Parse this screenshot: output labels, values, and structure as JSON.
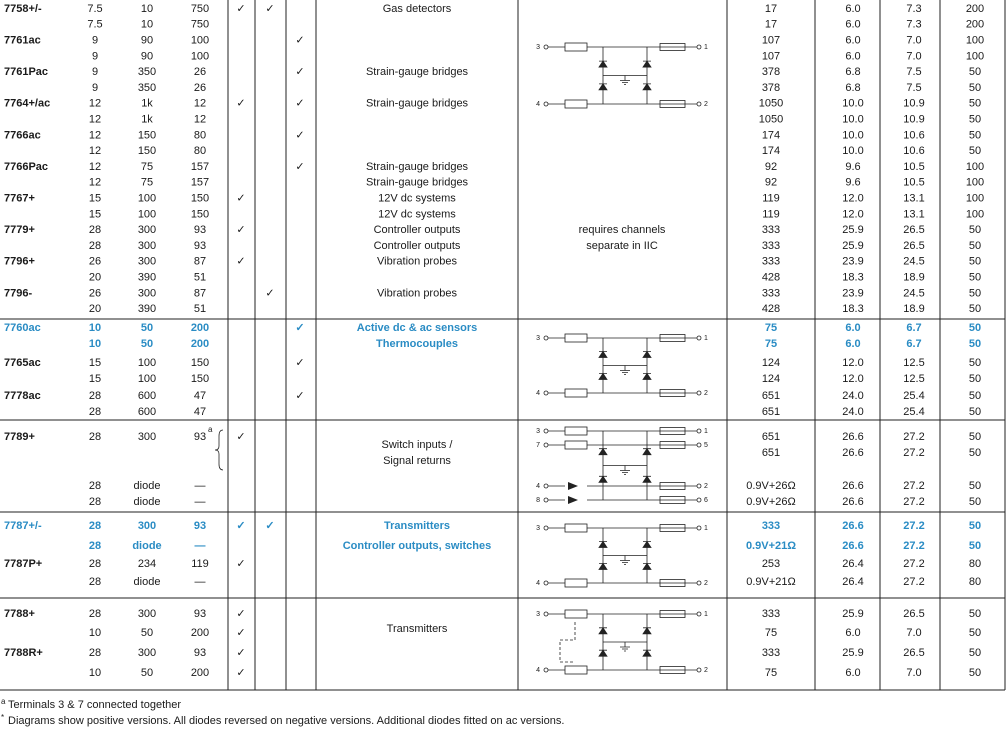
{
  "table": {
    "groups": [
      {
        "rows": [
          [
            "7758+/-",
            "7.5",
            "10",
            "750",
            "✓",
            "✓",
            null,
            "Gas detectors",
            null,
            "17",
            "6.0",
            "7.3",
            "200"
          ],
          [
            null,
            "7.5",
            "10",
            "750",
            null,
            null,
            null,
            null,
            null,
            "17",
            "6.0",
            "7.3",
            "200"
          ],
          [
            "7761ac",
            "9",
            "90",
            "100",
            null,
            null,
            "✓",
            null,
            null,
            "107",
            "6.0",
            "7.0",
            "100"
          ],
          [
            null,
            "9",
            "90",
            "100",
            null,
            null,
            null,
            null,
            null,
            "107",
            "6.0",
            "7.0",
            "100"
          ],
          [
            "7761Pac",
            "9",
            "350",
            "26",
            null,
            null,
            "✓",
            "Strain-gauge bridges",
            null,
            "378",
            "6.8",
            "7.5",
            "50"
          ],
          [
            null,
            "9",
            "350",
            "26",
            null,
            null,
            null,
            null,
            null,
            "378",
            "6.8",
            "7.5",
            "50"
          ],
          [
            "7764+/ac",
            "12",
            "1k",
            "12",
            "✓",
            null,
            "✓",
            "Strain-gauge bridges",
            null,
            "1050",
            "10.0",
            "10.9",
            "50"
          ],
          [
            null,
            "12",
            "1k",
            "12",
            null,
            null,
            null,
            null,
            null,
            "1050",
            "10.0",
            "10.9",
            "50"
          ],
          [
            "7766ac",
            "12",
            "150",
            "80",
            null,
            null,
            "✓",
            null,
            null,
            "174",
            "10.0",
            "10.6",
            "50"
          ],
          [
            null,
            "12",
            "150",
            "80",
            null,
            null,
            null,
            null,
            null,
            "174",
            "10.0",
            "10.6",
            "50"
          ],
          [
            "7766Pac",
            "12",
            "75",
            "157",
            null,
            null,
            "✓",
            "Strain-gauge bridges",
            null,
            "92",
            "9.6",
            "10.5",
            "100"
          ],
          [
            null,
            "12",
            "75",
            "157",
            null,
            null,
            null,
            "Strain-gauge bridges",
            null,
            "92",
            "9.6",
            "10.5",
            "100"
          ],
          [
            "7767+",
            "15",
            "100",
            "150",
            "✓",
            null,
            null,
            "12V dc systems",
            null,
            "119",
            "12.0",
            "13.1",
            "100"
          ],
          [
            null,
            "15",
            "100",
            "150",
            null,
            null,
            null,
            "12V dc systems",
            null,
            "119",
            "12.0",
            "13.1",
            "100"
          ],
          [
            "7779+",
            "28",
            "300",
            "93",
            "✓",
            null,
            null,
            "Controller outputs",
            "requires channels",
            "333",
            "25.9",
            "26.5",
            "50"
          ],
          [
            null,
            "28",
            "300",
            "93",
            null,
            null,
            null,
            "Controller outputs",
            "separate in IIC",
            "333",
            "25.9",
            "26.5",
            "50"
          ],
          [
            "7796+",
            "26",
            "300",
            "87",
            "✓",
            null,
            null,
            "Vibration probes",
            null,
            "333",
            "23.9",
            "24.5",
            "50"
          ],
          [
            null,
            "20",
            "390",
            "51",
            null,
            null,
            null,
            null,
            null,
            "428",
            "18.3",
            "18.9",
            "50"
          ],
          [
            "7796-",
            "26",
            "300",
            "87",
            null,
            "✓",
            null,
            "Vibration probes",
            null,
            "333",
            "23.9",
            "24.5",
            "50"
          ],
          [
            null,
            "20",
            "390",
            "51",
            null,
            null,
            null,
            null,
            null,
            "428",
            "18.3",
            "18.9",
            "50"
          ]
        ],
        "diagram": {
          "terminals": [
            [
              "3",
              "1"
            ],
            [
              "4",
              "2"
            ]
          ]
        }
      },
      {
        "highlight": [
          0,
          1
        ],
        "rows": [
          [
            "7760ac",
            "10",
            "50",
            "200",
            null,
            null,
            "✓",
            "Active dc & ac sensors",
            null,
            "75",
            "6.0",
            "6.7",
            "50"
          ],
          [
            null,
            "10",
            "50",
            "200",
            null,
            null,
            null,
            "Thermocouples",
            null,
            "75",
            "6.0",
            "6.7",
            "50"
          ],
          [
            "7765ac",
            "15",
            "100",
            "150",
            null,
            null,
            "✓",
            null,
            null,
            "124",
            "12.0",
            "12.5",
            "50"
          ],
          [
            null,
            "15",
            "100",
            "150",
            null,
            null,
            null,
            null,
            null,
            "124",
            "12.0",
            "12.5",
            "50"
          ],
          [
            "7778ac",
            "28",
            "600",
            "47",
            null,
            null,
            "✓",
            null,
            null,
            "651",
            "24.0",
            "25.4",
            "50"
          ],
          [
            null,
            "28",
            "600",
            "47",
            null,
            null,
            null,
            null,
            null,
            "651",
            "24.0",
            "25.4",
            "50"
          ]
        ],
        "diagram": {
          "terminals": [
            [
              "3",
              "1"
            ],
            [
              "4",
              "2"
            ]
          ]
        }
      },
      {
        "rows": [
          [
            "7789+",
            "28",
            "300",
            {
              "text": "93",
              "note": "a"
            },
            "✓",
            null,
            null,
            "Switch inputs /",
            null,
            "651",
            "26.6",
            "27.2",
            "50"
          ],
          [
            null,
            null,
            null,
            null,
            null,
            null,
            null,
            "Signal returns",
            null,
            "651",
            "26.6",
            "27.2",
            "50"
          ],
          [
            null,
            "28",
            "diode",
            "—",
            null,
            null,
            null,
            null,
            null,
            "0.9V+26Ω",
            "26.6",
            "27.2",
            "50"
          ],
          [
            null,
            "28",
            "diode",
            "—",
            null,
            null,
            null,
            null,
            null,
            "0.9V+26Ω",
            "26.6",
            "27.2",
            "50"
          ]
        ],
        "diagram": {
          "terminals": [
            [
              "3",
              "1"
            ],
            [
              "7",
              "5"
            ],
            [
              "4",
              "2"
            ],
            [
              "8",
              "6"
            ]
          ]
        }
      },
      {
        "highlight": [
          0,
          1
        ],
        "rows": [
          [
            "7787+/-",
            "28",
            "300",
            "93",
            "✓",
            "✓",
            null,
            "Transmitters",
            null,
            "333",
            "26.6",
            "27.2",
            "50"
          ],
          [
            null,
            "28",
            "diode",
            "—",
            null,
            null,
            null,
            "Controller outputs, switches",
            null,
            "0.9V+21Ω",
            "26.6",
            "27.2",
            "50"
          ],
          [
            "7787P+",
            "28",
            "234",
            "119",
            "✓",
            null,
            null,
            null,
            null,
            "253",
            "26.4",
            "27.2",
            "80"
          ],
          [
            null,
            "28",
            "diode",
            "—",
            null,
            null,
            null,
            null,
            null,
            "0.9V+21Ω",
            "26.4",
            "27.2",
            "80"
          ]
        ],
        "diagram": {
          "terminals": [
            [
              "3",
              "1"
            ],
            [
              "4",
              "2"
            ]
          ]
        }
      },
      {
        "rows": [
          [
            "7788+",
            "28",
            "300",
            "93",
            "✓",
            null,
            null,
            null,
            null,
            "333",
            "25.9",
            "26.5",
            "50"
          ],
          [
            null,
            "10",
            "50",
            "200",
            "✓",
            null,
            null,
            "Transmitters",
            null,
            "75",
            "6.0",
            "7.0",
            "50"
          ],
          [
            "7788R+",
            "28",
            "300",
            "93",
            "✓",
            null,
            null,
            null,
            null,
            "333",
            "25.9",
            "26.5",
            "50"
          ],
          [
            null,
            "10",
            "50",
            "200",
            "✓",
            null,
            null,
            null,
            null,
            "75",
            "6.0",
            "7.0",
            "50"
          ]
        ],
        "diagram": {
          "terminals": [
            [
              "3",
              "1"
            ],
            [
              "4",
              "2"
            ]
          ]
        }
      }
    ],
    "footnotes": [
      {
        "mark": "a",
        "text": "Terminals 3 & 7 connected together"
      },
      {
        "mark": "*",
        "text": "Diagrams show positive versions. All diodes reversed on negative versions. Additional diodes fitted on ac versions."
      }
    ]
  }
}
